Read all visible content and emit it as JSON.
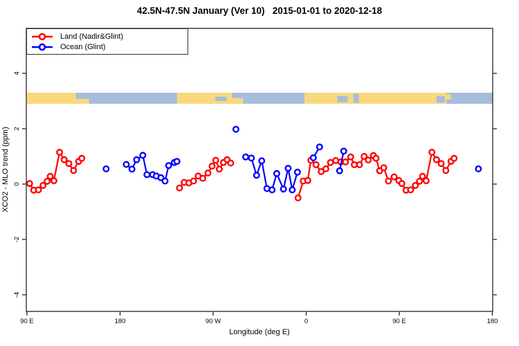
{
  "title": "42.5N-47.5N January (Ver 10)   2015-01-01 to 2020-12-18",
  "legend": [
    {
      "label": "Land (Nadir&Glint)",
      "color": "#ff0000"
    },
    {
      "label": "Ocean (Glint)",
      "color": "#0000ff"
    }
  ],
  "chart_data": {
    "type": "line",
    "title": "42.5N-47.5N January (Ver 10)   2015-01-01 to 2020-12-18",
    "xlabel": "Longitude (deg E)",
    "ylabel": "XCO2 - MLO trend (ppm)",
    "x_axis_note": "longitude axis wraps: 90E to 180 to 90W to 0 to 90E to 180 (450 deg span); x stored as axis degrees 90..540",
    "xlim": [
      90,
      540
    ],
    "ylim": [
      -4.6,
      5.6
    ],
    "grid": false,
    "legend_position": "top-left",
    "x_ticks": [
      {
        "x": 90,
        "label": "90 E"
      },
      {
        "x": 180,
        "label": "180"
      },
      {
        "x": 270,
        "label": "90 W"
      },
      {
        "x": 360,
        "label": "0"
      },
      {
        "x": 450,
        "label": "90 E"
      },
      {
        "x": 540,
        "label": "180"
      }
    ],
    "y_ticks": [
      {
        "v": -4,
        "label": "-4"
      },
      {
        "v": -2,
        "label": "-2"
      },
      {
        "v": 0,
        "label": "0"
      },
      {
        "v": 2,
        "label": "2"
      },
      {
        "v": 4,
        "label": "4"
      }
    ],
    "map_strip": {
      "description": "land/ocean strip map for 42.5N-47.5N plotted at y=2.9..3.3 ppm",
      "v_top": 3.3,
      "v_bottom": 2.9,
      "land_color": "#fad87e",
      "ocean_color": "#a8bddc",
      "base_segments": [
        {
          "from": 90,
          "to": 140,
          "type": "land"
        },
        {
          "from": 140,
          "to": 235.3,
          "type": "ocean"
        },
        {
          "from": 235.3,
          "to": 293,
          "type": "land"
        },
        {
          "from": 293,
          "to": 358.5,
          "type": "ocean"
        },
        {
          "from": 358.5,
          "to": 495.5,
          "type": "land"
        },
        {
          "from": 495.5,
          "to": 540,
          "type": "ocean"
        }
      ],
      "patches": [
        {
          "from": 137,
          "to": 143,
          "top": 0.0,
          "bottom": 0.55,
          "type": "ocean"
        },
        {
          "from": 140,
          "to": 150,
          "top": 0.55,
          "bottom": 1.0,
          "type": "land"
        },
        {
          "from": 272,
          "to": 283,
          "top": 0.35,
          "bottom": 0.75,
          "type": "ocean"
        },
        {
          "from": 288,
          "to": 293,
          "top": 0.0,
          "bottom": 0.45,
          "type": "ocean"
        },
        {
          "from": 293,
          "to": 299,
          "top": 0.5,
          "bottom": 1.0,
          "type": "land"
        },
        {
          "from": 390,
          "to": 400,
          "top": 0.3,
          "bottom": 0.85,
          "type": "ocean"
        },
        {
          "from": 405.5,
          "to": 411,
          "top": 0.1,
          "bottom": 0.9,
          "type": "ocean"
        },
        {
          "from": 486,
          "to": 494,
          "top": 0.3,
          "bottom": 0.9,
          "type": "ocean"
        },
        {
          "from": 495.5,
          "to": 500,
          "top": 0.15,
          "bottom": 0.6,
          "type": "land"
        }
      ]
    },
    "series": [
      {
        "name": "land-asia-left",
        "group": "Land (Nadir&Glint)",
        "color": "#ff0000",
        "points": [
          [
            92.5,
            0.02
          ],
          [
            96.5,
            -0.22
          ],
          [
            101,
            -0.21
          ],
          [
            105.5,
            -0.05
          ],
          [
            109.5,
            0.1
          ],
          [
            112.5,
            0.28
          ],
          [
            116,
            0.12
          ],
          [
            121.5,
            1.15
          ],
          [
            126,
            0.88
          ],
          [
            130.5,
            0.74
          ],
          [
            135,
            0.49
          ],
          [
            140,
            0.82
          ],
          [
            143,
            0.93
          ]
        ]
      },
      {
        "name": "ocean-japan-left",
        "group": "Ocean (Glint)",
        "color": "#0000ff",
        "points": [
          [
            166.5,
            0.55
          ]
        ]
      },
      {
        "name": "ocean-pacific",
        "group": "Ocean (Glint)",
        "color": "#0000ff",
        "points": [
          [
            186,
            0.71
          ],
          [
            191.5,
            0.54
          ],
          [
            196,
            0.88
          ],
          [
            202,
            1.04
          ],
          [
            206,
            0.34
          ],
          [
            211.5,
            0.34
          ],
          [
            215,
            0.29
          ],
          [
            219.5,
            0.23
          ],
          [
            223.5,
            0.11
          ],
          [
            227,
            0.67
          ],
          [
            232.5,
            0.78
          ],
          [
            235,
            0.82
          ]
        ]
      },
      {
        "name": "land-north-america",
        "group": "Land (Nadir&Glint)",
        "color": "#ff0000",
        "points": [
          [
            237.5,
            -0.14
          ],
          [
            242,
            0.06
          ],
          [
            246.5,
            0.04
          ],
          [
            251,
            0.11
          ],
          [
            255.5,
            0.29
          ],
          [
            260,
            0.21
          ],
          [
            265,
            0.4
          ],
          [
            269,
            0.65
          ],
          [
            272.5,
            0.86
          ],
          [
            276,
            0.54
          ],
          [
            280,
            0.78
          ],
          [
            283.5,
            0.88
          ],
          [
            287,
            0.76
          ]
        ]
      },
      {
        "name": "ocean-atlantic-outlier",
        "group": "Ocean (Glint)",
        "color": "#0000ff",
        "points": [
          [
            292,
            1.98
          ]
        ]
      },
      {
        "name": "ocean-atlantic",
        "group": "Ocean (Glint)",
        "color": "#0000ff",
        "points": [
          [
            301.5,
            0.98
          ],
          [
            307,
            0.94
          ],
          [
            312,
            0.32
          ],
          [
            317,
            0.84
          ],
          [
            322,
            -0.16
          ],
          [
            327,
            -0.21
          ],
          [
            331.5,
            0.38
          ],
          [
            338,
            -0.18
          ],
          [
            342.5,
            0.57
          ],
          [
            346.5,
            -0.21
          ],
          [
            351.5,
            0.43
          ]
        ]
      },
      {
        "name": "land-eurasia",
        "group": "Land (Nadir&Glint)",
        "color": "#ff0000",
        "points": [
          [
            352.1,
            -0.5
          ],
          [
            357.1,
            0.11
          ],
          [
            361.5,
            0.13
          ],
          [
            364.5,
            0.86
          ],
          [
            369.5,
            0.7
          ],
          [
            374.5,
            0.45
          ],
          [
            379,
            0.55
          ],
          [
            383.5,
            0.78
          ],
          [
            388.5,
            0.85
          ],
          [
            393.5,
            0.8
          ],
          [
            398,
            0.8
          ],
          [
            403,
            0.98
          ],
          [
            406.5,
            0.7
          ],
          [
            411.5,
            0.7
          ],
          [
            416,
            1.0
          ],
          [
            420,
            0.87
          ],
          [
            425,
            1.03
          ],
          [
            427.5,
            0.93
          ],
          [
            431,
            0.48
          ],
          [
            435,
            0.59
          ],
          [
            439.5,
            0.11
          ],
          [
            445,
            0.26
          ],
          [
            449.5,
            0.13
          ],
          [
            452.5,
            0.02
          ],
          [
            456.5,
            -0.22
          ],
          [
            461,
            -0.21
          ],
          [
            465.5,
            -0.05
          ],
          [
            469.5,
            0.1
          ],
          [
            472.5,
            0.28
          ],
          [
            476,
            0.12
          ],
          [
            481.5,
            1.15
          ],
          [
            486,
            0.88
          ],
          [
            490.5,
            0.74
          ],
          [
            495,
            0.49
          ],
          [
            500,
            0.82
          ],
          [
            503,
            0.93
          ]
        ]
      },
      {
        "name": "ocean-liguria",
        "group": "Ocean (Glint)",
        "color": "#0000ff",
        "points": [
          [
            366.9,
            0.95
          ],
          [
            372.9,
            1.34
          ]
        ]
      },
      {
        "name": "ocean-blacksea",
        "group": "Ocean (Glint)",
        "color": "#0000ff",
        "points": [
          [
            392.3,
            0.48
          ],
          [
            396.3,
            1.19
          ]
        ]
      },
      {
        "name": "ocean-japan-right",
        "group": "Ocean (Glint)",
        "color": "#0000ff",
        "points": [
          [
            526.5,
            0.55
          ]
        ]
      }
    ]
  }
}
